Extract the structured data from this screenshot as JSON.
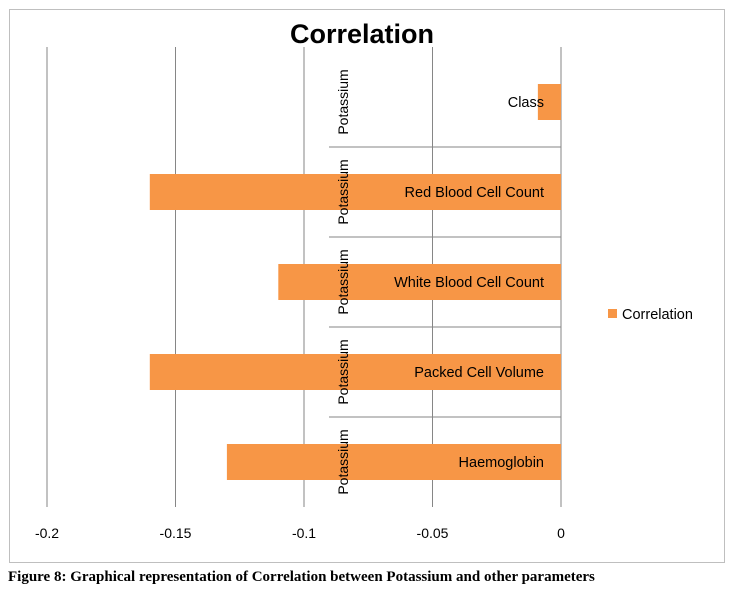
{
  "chart_data": {
    "type": "bar",
    "orientation": "horizontal",
    "title": "Correlation",
    "group_label": "Potassium",
    "categories": [
      "Class",
      "Red Blood Cell Count",
      "White Blood Cell Count",
      "Packed Cell Volume",
      "Haemoglobin"
    ],
    "series": [
      {
        "name": "Correlation",
        "values": [
          -0.009,
          -0.16,
          -0.11,
          -0.16,
          -0.13
        ],
        "color": "#f79646"
      }
    ],
    "xlim": [
      -0.2,
      0
    ],
    "xticks": [
      "-0.2",
      "-0.15",
      "-0.1",
      "-0.05",
      "0"
    ],
    "grid": true,
    "legend": "right"
  },
  "caption": "Figure 8: Graphical representation of Correlation between Potassium and other parameters"
}
